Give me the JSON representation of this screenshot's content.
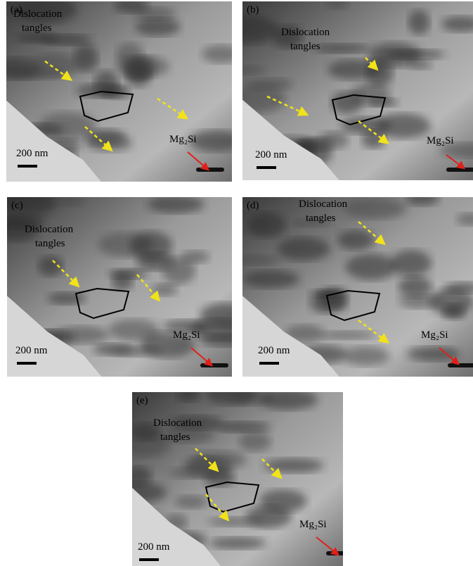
{
  "panels": [
    {
      "label": "(a)",
      "annotation": [
        "Dislocation",
        "tangles"
      ],
      "phase": "Mg₂Si",
      "scale_bar": "200 nm"
    },
    {
      "label": "(b)",
      "annotation": [
        "Dislocation",
        "tangles"
      ],
      "phase": "Mg₂Si",
      "scale_bar": "200 nm"
    },
    {
      "label": "(c)",
      "annotation": [
        "Dislocation",
        "tangles"
      ],
      "phase": "Mg₂Si",
      "scale_bar": "200 nm"
    },
    {
      "label": "(d)",
      "annotation": [
        "Dislocation",
        "tangles"
      ],
      "phase": "Mg₂Si",
      "scale_bar": "200 nm"
    },
    {
      "label": "(e)",
      "annotation": [
        "Dislocation",
        "tangles"
      ],
      "phase": "Mg₂Si",
      "scale_bar": "200 nm"
    }
  ]
}
